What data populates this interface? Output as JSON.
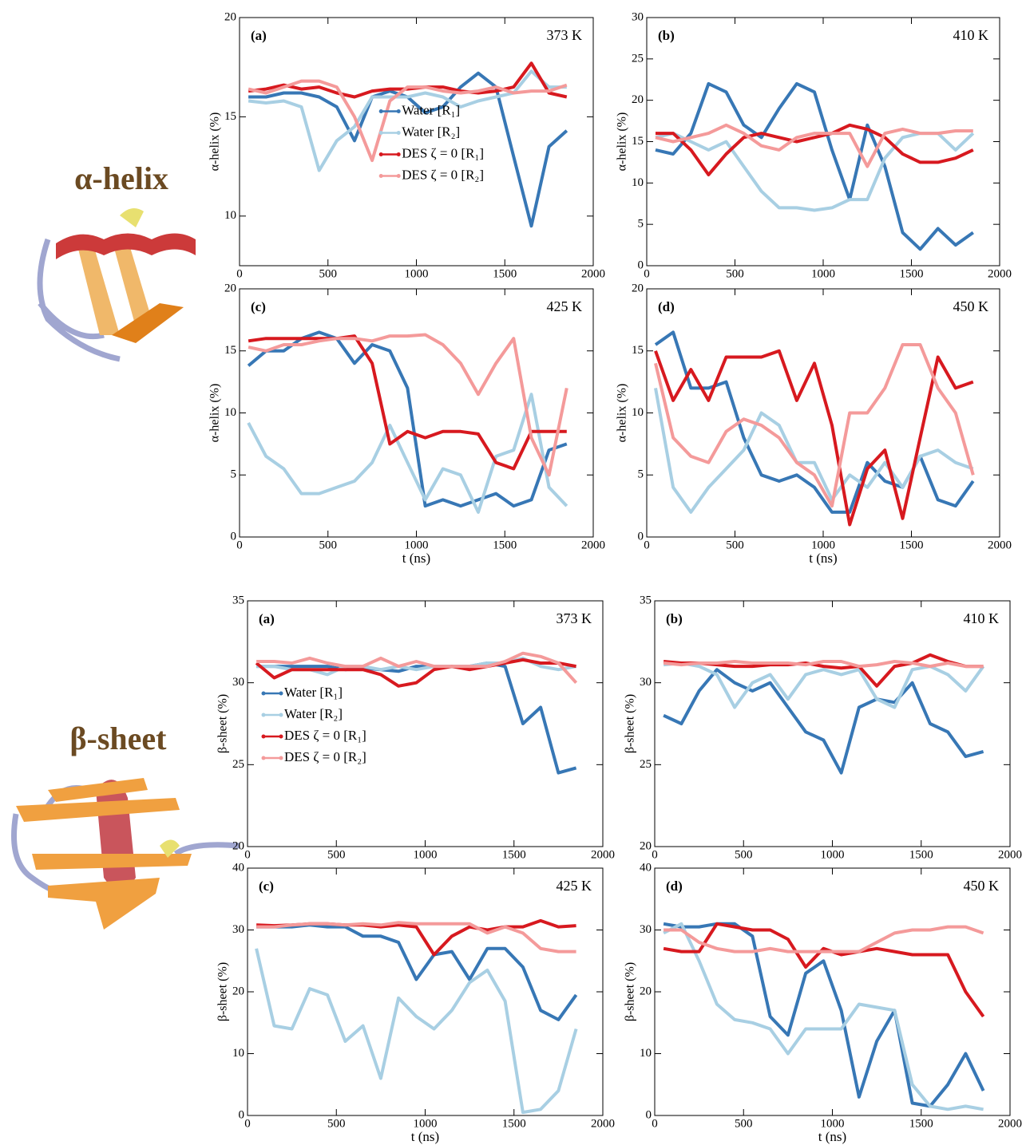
{
  "side_labels": [
    "α-helix",
    "β-sheet"
  ],
  "chart_data": [
    {
      "type": "line",
      "panel": "(a)",
      "annotation": "373 K",
      "ylabel": "α-helix (%)",
      "legend": "center",
      "xlim": [
        0,
        2000
      ],
      "xticks": [
        0,
        500,
        1000,
        1500,
        2000
      ],
      "ylim": [
        7.5,
        20
      ],
      "yticks": [
        10,
        15,
        20
      ],
      "x": [
        50,
        150,
        250,
        350,
        450,
        550,
        650,
        750,
        850,
        950,
        1050,
        1150,
        1250,
        1350,
        1450,
        1550,
        1650,
        1750,
        1850
      ],
      "series": [
        {
          "name": "Water [R₁]",
          "color": "#3777b5",
          "values": [
            16,
            16,
            16.2,
            16.2,
            16,
            15.5,
            13.8,
            16,
            16.3,
            16,
            15.2,
            15.5,
            16.5,
            17.2,
            16.5,
            13,
            9.5,
            13.5,
            14.3
          ]
        },
        {
          "name": "Water [R₂]",
          "color": "#a8cfe3",
          "values": [
            15.8,
            15.7,
            15.8,
            15.5,
            12.3,
            13.8,
            14.5,
            16,
            16,
            16,
            16.2,
            16,
            15.5,
            15.8,
            16,
            16.2,
            17.3,
            16.5,
            16.5
          ]
        },
        {
          "name": "DES ζ = 0 [R₁]",
          "color": "#d7191f",
          "values": [
            16.3,
            16.4,
            16.6,
            16.4,
            16.5,
            16.2,
            16,
            16.3,
            16.4,
            16.4,
            16.5,
            16.5,
            16.3,
            16.2,
            16.3,
            16.5,
            17.7,
            16.2,
            16
          ]
        },
        {
          "name": "DES ζ = 0 [R₂]",
          "color": "#f49a9a",
          "values": [
            16.4,
            16.2,
            16.5,
            16.8,
            16.8,
            16.5,
            15,
            12.8,
            15.8,
            16.5,
            16.5,
            16.3,
            16.2,
            16.3,
            16.5,
            16.2,
            16.3,
            16.3,
            16.6
          ]
        }
      ]
    },
    {
      "type": "line",
      "panel": "(b)",
      "annotation": "410 K",
      "ylabel": "α-helix (%)",
      "xlim": [
        0,
        2000
      ],
      "xticks": [
        0,
        500,
        1000,
        1500,
        2000
      ],
      "ylim": [
        0,
        30
      ],
      "yticks": [
        0,
        5,
        10,
        15,
        20,
        25,
        30
      ],
      "x": [
        50,
        150,
        250,
        350,
        450,
        550,
        650,
        750,
        850,
        950,
        1050,
        1150,
        1250,
        1350,
        1450,
        1550,
        1650,
        1750,
        1850
      ],
      "series": [
        {
          "color": "#3777b5",
          "values": [
            14,
            13.5,
            16,
            22,
            21,
            17,
            15.5,
            19,
            22,
            21,
            14,
            8,
            17,
            12,
            4,
            2,
            4.5,
            2.5,
            4
          ]
        },
        {
          "color": "#a8cfe3",
          "values": [
            15.5,
            16,
            15,
            14,
            15,
            12,
            9,
            7,
            7,
            6.7,
            7,
            8,
            8,
            13,
            15.5,
            16,
            16,
            14,
            16
          ]
        },
        {
          "color": "#d7191f",
          "values": [
            16,
            16,
            14,
            11,
            13.5,
            15.5,
            16,
            15.5,
            15,
            15.5,
            16,
            17,
            16.5,
            15.5,
            13.5,
            12.5,
            12.5,
            13,
            14
          ]
        },
        {
          "color": "#f49a9a",
          "values": [
            15.5,
            15,
            15.5,
            16,
            17,
            16,
            14.5,
            14,
            15.5,
            16,
            16,
            16,
            12,
            16,
            16.5,
            16,
            16,
            16.3,
            16.3
          ]
        }
      ]
    },
    {
      "type": "line",
      "panel": "(c)",
      "annotation": "425 K",
      "ylabel": "α-helix (%)",
      "xlabel": "t (ns)",
      "xlim": [
        0,
        2000
      ],
      "xticks": [
        0,
        500,
        1000,
        1500,
        2000
      ],
      "ylim": [
        0,
        20
      ],
      "yticks": [
        0,
        5,
        10,
        15,
        20
      ],
      "x": [
        50,
        150,
        250,
        350,
        450,
        550,
        650,
        750,
        850,
        950,
        1050,
        1150,
        1250,
        1350,
        1450,
        1550,
        1650,
        1750,
        1850
      ],
      "series": [
        {
          "color": "#3777b5",
          "values": [
            13.8,
            15,
            15,
            16,
            16.5,
            16,
            14,
            15.5,
            15,
            12,
            2.5,
            3,
            2.5,
            3,
            3.5,
            2.5,
            3,
            7,
            7.5
          ]
        },
        {
          "color": "#a8cfe3",
          "values": [
            9.2,
            6.5,
            5.5,
            3.5,
            3.5,
            4,
            4.5,
            6,
            9,
            6,
            3,
            5.5,
            5,
            2,
            6.5,
            7,
            11.5,
            4,
            2.5
          ]
        },
        {
          "color": "#d7191f",
          "values": [
            15.8,
            16,
            16,
            16,
            16,
            16,
            16.2,
            14,
            7.5,
            8.5,
            8,
            8.5,
            8.5,
            8.3,
            6,
            5.5,
            8.5,
            8.5,
            8.5
          ]
        },
        {
          "color": "#f49a9a",
          "values": [
            15.3,
            15,
            15.5,
            15.5,
            15.8,
            16,
            16,
            15.8,
            16.2,
            16.2,
            16.3,
            15.5,
            14,
            11.5,
            14,
            16,
            8,
            5,
            12
          ]
        }
      ]
    },
    {
      "type": "line",
      "panel": "(d)",
      "annotation": "450 K",
      "ylabel": "α-helix (%)",
      "xlabel": "t (ns)",
      "xlim": [
        0,
        2000
      ],
      "xticks": [
        0,
        500,
        1000,
        1500,
        2000
      ],
      "ylim": [
        0,
        20
      ],
      "yticks": [
        0,
        5,
        10,
        15,
        20
      ],
      "x": [
        50,
        150,
        250,
        350,
        450,
        550,
        650,
        750,
        850,
        950,
        1050,
        1150,
        1250,
        1350,
        1450,
        1550,
        1650,
        1750,
        1850
      ],
      "series": [
        {
          "color": "#3777b5",
          "values": [
            15.5,
            16.5,
            12,
            12,
            12.5,
            8,
            5,
            4.5,
            5,
            4,
            2,
            2,
            6,
            4.5,
            4,
            6.5,
            3,
            2.5,
            4.5
          ]
        },
        {
          "color": "#a8cfe3",
          "values": [
            12,
            4,
            2,
            4,
            5.5,
            7,
            10,
            9,
            6,
            6,
            3,
            5,
            4,
            6,
            4,
            6.5,
            7,
            6,
            5.5
          ]
        },
        {
          "color": "#d7191f",
          "values": [
            15,
            11,
            13.5,
            11,
            14.5,
            14.5,
            14.5,
            15,
            11,
            14,
            9,
            1,
            5.5,
            7,
            1.5,
            8,
            14.5,
            12,
            12.5
          ]
        },
        {
          "color": "#f49a9a",
          "values": [
            14,
            8,
            6.5,
            6,
            8.5,
            9.5,
            9,
            8,
            6,
            5,
            2.5,
            10,
            10,
            12,
            15.5,
            15.5,
            12,
            10,
            5
          ]
        }
      ]
    },
    {
      "type": "line",
      "panel": "(a)",
      "annotation": "373 K",
      "ylabel": "β-sheet (%)",
      "legend": "center left",
      "xlim": [
        0,
        2000
      ],
      "xticks": [
        0,
        500,
        1000,
        1500,
        2000
      ],
      "ylim": [
        20,
        35
      ],
      "yticks": [
        20,
        25,
        30,
        35
      ],
      "x": [
        50,
        150,
        250,
        350,
        450,
        550,
        650,
        750,
        850,
        950,
        1050,
        1150,
        1250,
        1350,
        1450,
        1550,
        1650,
        1750,
        1850
      ],
      "series": [
        {
          "name": "Water [R₁]",
          "color": "#3777b5",
          "values": [
            31,
            31,
            31,
            31,
            31,
            30.8,
            30.9,
            30.8,
            30.7,
            31,
            31,
            31,
            31,
            31.2,
            31,
            27.5,
            28.5,
            24.5,
            24.8
          ]
        },
        {
          "name": "Water [R₂]",
          "color": "#a8cfe3",
          "values": [
            31,
            31,
            30.8,
            30.8,
            30.5,
            31,
            31,
            30.8,
            31,
            30.8,
            31,
            31,
            31,
            31.2,
            31.2,
            31.5,
            31,
            30.8,
            31
          ]
        },
        {
          "name": "DES ζ = 0 [R₁]",
          "color": "#d7191f",
          "values": [
            31.2,
            30.3,
            30.8,
            30.8,
            30.8,
            30.8,
            30.8,
            30.5,
            29.8,
            30,
            30.8,
            31,
            30.8,
            31,
            31.2,
            31.4,
            31.2,
            31.2,
            31
          ]
        },
        {
          "name": "DES ζ = 0 [R₂]",
          "color": "#f49a9a",
          "values": [
            31.3,
            31.3,
            31.2,
            31.5,
            31.2,
            31,
            31,
            31.5,
            31,
            31.3,
            31,
            31,
            31,
            31,
            31.3,
            31.8,
            31.6,
            31.2,
            30
          ]
        }
      ]
    },
    {
      "type": "line",
      "panel": "(b)",
      "annotation": "410 K",
      "ylabel": "β-sheet (%)",
      "xlim": [
        0,
        2000
      ],
      "xticks": [
        0,
        500,
        1000,
        1500,
        2000
      ],
      "ylim": [
        20,
        35
      ],
      "yticks": [
        20,
        25,
        30,
        35
      ],
      "x": [
        50,
        150,
        250,
        350,
        450,
        550,
        650,
        750,
        850,
        950,
        1050,
        1150,
        1250,
        1350,
        1450,
        1550,
        1650,
        1750,
        1850
      ],
      "series": [
        {
          "color": "#3777b5",
          "values": [
            28,
            27.5,
            29.5,
            30.8,
            30,
            29.5,
            30,
            28.5,
            27,
            26.5,
            24.5,
            28.5,
            29,
            28.8,
            30,
            27.5,
            27,
            25.5,
            25.8
          ]
        },
        {
          "color": "#a8cfe3",
          "values": [
            31.1,
            31.2,
            31,
            30.5,
            28.5,
            30,
            30.5,
            29,
            30.5,
            30.8,
            30.5,
            30.8,
            29,
            28.5,
            30.8,
            31,
            30.5,
            29.5,
            31
          ]
        },
        {
          "color": "#d7191f",
          "values": [
            31.3,
            31.2,
            31.2,
            31.1,
            31,
            31,
            31.1,
            31.1,
            31.2,
            31,
            30.9,
            31,
            29.8,
            31,
            31.2,
            31.7,
            31.3,
            31,
            31
          ]
        },
        {
          "color": "#f49a9a",
          "values": [
            31.2,
            31.1,
            31.2,
            31.2,
            31.3,
            31.2,
            31.2,
            31.2,
            31.1,
            31.3,
            31.3,
            31,
            31.1,
            31.3,
            31.2,
            31,
            31.2,
            31,
            31
          ]
        }
      ]
    },
    {
      "type": "line",
      "panel": "(c)",
      "annotation": "425 K",
      "ylabel": "β-sheet (%)",
      "xlabel": "t (ns)",
      "xlim": [
        0,
        2000
      ],
      "xticks": [
        0,
        500,
        1000,
        1500,
        2000
      ],
      "ylim": [
        0,
        40
      ],
      "yticks": [
        0,
        10,
        20,
        30,
        40
      ],
      "x": [
        50,
        150,
        250,
        350,
        450,
        550,
        650,
        750,
        850,
        950,
        1050,
        1150,
        1250,
        1350,
        1450,
        1550,
        1650,
        1750,
        1850
      ],
      "series": [
        {
          "color": "#3777b5",
          "values": [
            30.5,
            30.5,
            30.5,
            30.8,
            30.5,
            30.5,
            29,
            29,
            28,
            22,
            26,
            26.5,
            22,
            27,
            27,
            24,
            17,
            15.5,
            19.5
          ]
        },
        {
          "color": "#a8cfe3",
          "values": [
            27,
            14.5,
            14,
            20.5,
            19.5,
            12,
            14.5,
            6,
            19,
            16,
            14,
            17,
            21.5,
            23.5,
            18.5,
            0.5,
            1,
            4,
            14
          ]
        },
        {
          "color": "#d7191f",
          "values": [
            30.8,
            30.7,
            30.8,
            31,
            31,
            30.8,
            30.8,
            30.5,
            30.8,
            30.5,
            26,
            29,
            30.5,
            30,
            30.5,
            30.5,
            31.5,
            30.5,
            30.7
          ]
        },
        {
          "color": "#f49a9a",
          "values": [
            30.5,
            30.5,
            30.8,
            31,
            31,
            30.8,
            31,
            30.8,
            31.2,
            31,
            31,
            31,
            31,
            29.5,
            30.5,
            29.5,
            27,
            26.5,
            26.5
          ]
        }
      ]
    },
    {
      "type": "line",
      "panel": "(d)",
      "annotation": "450 K",
      "ylabel": "β-sheet (%)",
      "xlabel": "t (ns)",
      "xlim": [
        0,
        2000
      ],
      "xticks": [
        0,
        500,
        1000,
        1500,
        2000
      ],
      "ylim": [
        0,
        40
      ],
      "yticks": [
        0,
        10,
        20,
        30,
        40
      ],
      "x": [
        50,
        150,
        250,
        350,
        450,
        550,
        650,
        750,
        850,
        950,
        1050,
        1150,
        1250,
        1350,
        1450,
        1550,
        1650,
        1750,
        1850
      ],
      "series": [
        {
          "color": "#3777b5",
          "values": [
            31,
            30.5,
            30.5,
            31,
            31,
            29,
            16,
            13,
            23,
            25,
            17,
            3,
            12,
            17,
            2,
            1.5,
            5,
            10,
            4
          ]
        },
        {
          "color": "#a8cfe3",
          "values": [
            29.5,
            31,
            25,
            18,
            15.5,
            15,
            14,
            10,
            14,
            14,
            14,
            18,
            17.5,
            17,
            5,
            1.5,
            1,
            1.5,
            1
          ]
        },
        {
          "color": "#d7191f",
          "values": [
            27,
            26.5,
            26.5,
            31,
            30.5,
            30,
            30,
            28.5,
            24,
            27,
            26,
            26.5,
            27,
            26.5,
            26,
            26,
            26,
            20,
            16
          ]
        },
        {
          "color": "#f49a9a",
          "values": [
            30,
            30,
            28,
            27,
            26.5,
            26.5,
            27,
            26.5,
            26.5,
            26.5,
            26.5,
            26.5,
            28,
            29.5,
            30,
            30,
            30.5,
            30.5,
            29.5
          ]
        }
      ]
    }
  ]
}
